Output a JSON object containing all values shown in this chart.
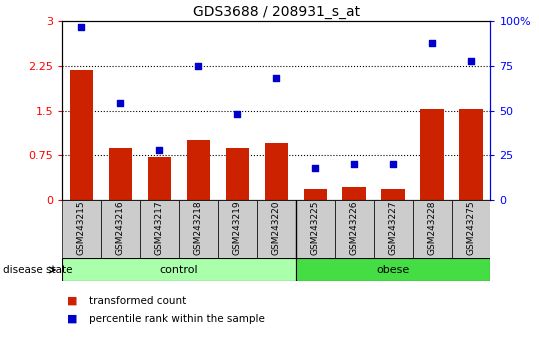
{
  "title": "GDS3688 / 208931_s_at",
  "samples": [
    "GSM243215",
    "GSM243216",
    "GSM243217",
    "GSM243218",
    "GSM243219",
    "GSM243220",
    "GSM243225",
    "GSM243226",
    "GSM243227",
    "GSM243228",
    "GSM243275"
  ],
  "bar_values": [
    2.18,
    0.88,
    0.72,
    1.0,
    0.87,
    0.95,
    0.18,
    0.22,
    0.18,
    1.53,
    1.52
  ],
  "scatter_values": [
    97,
    54,
    28,
    75,
    48,
    68,
    18,
    20,
    20,
    88,
    78
  ],
  "bar_color": "#cc2200",
  "scatter_color": "#0000cc",
  "ylim_left": [
    0,
    3
  ],
  "ylim_right": [
    0,
    100
  ],
  "yticks_left": [
    0,
    0.75,
    1.5,
    2.25,
    3
  ],
  "yticks_right": [
    0,
    25,
    50,
    75,
    100
  ],
  "ytick_labels_left": [
    "0",
    "0.75",
    "1.5",
    "2.25",
    "3"
  ],
  "ytick_labels_right": [
    "0",
    "25",
    "50",
    "75",
    "100%"
  ],
  "hlines": [
    0.75,
    1.5,
    2.25
  ],
  "control_indices": [
    0,
    1,
    2,
    3,
    4,
    5
  ],
  "obese_indices": [
    6,
    7,
    8,
    9,
    10
  ],
  "control_color": "#aaffaa",
  "obese_color": "#44dd44",
  "label_box_color": "#cccccc",
  "legend": [
    {
      "label": "transformed count",
      "color": "#cc2200"
    },
    {
      "label": "percentile rank within the sample",
      "color": "#0000cc"
    }
  ],
  "bar_width": 0.6
}
